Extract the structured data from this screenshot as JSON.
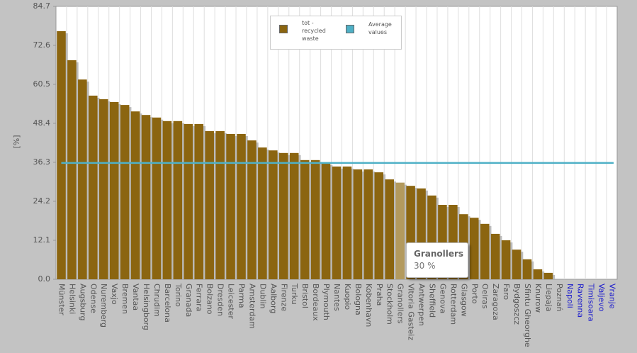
{
  "chart_data": {
    "type": "bar",
    "y_label": "[%]",
    "categories": [
      "Münster",
      "Helsinki",
      "Augsburg",
      "Odense",
      "Nuremberg",
      "Vaxjo",
      "Bremen",
      "Vantaa",
      "Helsingborg",
      "Chrudim",
      "Barcelona",
      "Torino",
      "Granada",
      "Ferrara",
      "Bolzano",
      "Dresden",
      "Leicester",
      "Parma",
      "Amsterdam",
      "Dublin",
      "Aalborg",
      "Firenze",
      "Turku",
      "Bristol",
      "Bordeaux",
      "Plymouth",
      "Nantes",
      "Kuopio",
      "Bologna",
      "Kobenhavn",
      "Praha",
      "Stockholm",
      "Granollers",
      "Vitoria Gasteiz",
      "Antwerpen",
      "Sheffield",
      "Genova",
      "Rotterdam",
      "Glasgow",
      "Porto",
      "Oeiras",
      "Zaragoza",
      "Faro",
      "Bydgoszcz",
      "Sfintu Gheorghe",
      "Knurow",
      "Liepaja",
      "Poznań",
      "Napoli",
      "Ravenna",
      "Timisoara",
      "Valjevo",
      "Vranje"
    ],
    "series": [
      {
        "name": "tot - recycled waste",
        "color": "#8b6510",
        "values": [
          77.0,
          68.0,
          62.0,
          57.0,
          55.9,
          55.0,
          54.1,
          52.1,
          51.0,
          50.2,
          49.1,
          49.1,
          48.2,
          48.2,
          46.0,
          46.0,
          45.1,
          45.1,
          43.1,
          40.9,
          40.0,
          39.2,
          39.2,
          37.0,
          37.0,
          36.1,
          35.0,
          35.0,
          34.1,
          34.1,
          33.2,
          31.0,
          30,
          29.0,
          28.2,
          26.0,
          23.1,
          23.1,
          20.2,
          19.1,
          17.2,
          14.1,
          12.1,
          9.2,
          6.2,
          3.1,
          2.0,
          0,
          null,
          null,
          null,
          null,
          null
        ]
      }
    ],
    "average": {
      "name": "Average values",
      "value": 36.1,
      "color": "#4fb0c6"
    },
    "highlight_color": "#b39a5e",
    "nodata_label_color": "#1a1acc",
    "tooltip": {
      "title": "Granollers",
      "text": "30 %"
    },
    "ylim": [
      0,
      84.7
    ],
    "yticks": [
      {
        "value": 0,
        "label": "0.0"
      },
      12.1,
      24.2,
      36.3,
      48.4,
      60.5,
      72.6,
      84.7
    ]
  }
}
